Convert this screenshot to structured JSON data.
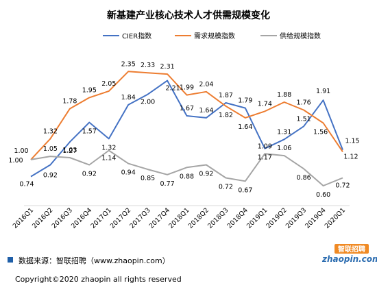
{
  "chart_data": {
    "type": "line",
    "title": "新基建产业核心技术人才供需规模变化",
    "categories": [
      "2016Q1",
      "2016Q2",
      "2016Q3",
      "2016Q4",
      "2017Q1",
      "2017Q2",
      "2017Q3",
      "2017Q4",
      "2018Q1",
      "2018Q2",
      "2018Q3",
      "2018Q4",
      "2019Q1",
      "2019Q2",
      "2019Q3",
      "2019Q4",
      "2020Q1"
    ],
    "series": [
      {
        "name": "CIER指数",
        "color": "#4472c4",
        "values": [
          0.74,
          0.92,
          1.27,
          1.57,
          1.32,
          1.84,
          2.0,
          2.21,
          1.67,
          1.64,
          1.87,
          1.79,
          1.17,
          1.31,
          1.51,
          1.91,
          1.15
        ]
      },
      {
        "name": "需求规模指数",
        "color": "#ed7d31",
        "values": [
          1.0,
          1.32,
          1.78,
          1.95,
          2.05,
          2.35,
          2.33,
          2.31,
          1.99,
          2.04,
          1.82,
          1.64,
          1.74,
          1.88,
          1.76,
          1.56,
          1.12
        ]
      },
      {
        "name": "供给规模指数",
        "color": "#a5a5a5",
        "values": [
          1.0,
          1.05,
          1.03,
          0.92,
          1.14,
          0.94,
          0.85,
          0.77,
          0.88,
          0.92,
          0.72,
          0.67,
          1.09,
          1.06,
          0.86,
          0.6,
          0.72
        ]
      }
    ],
    "ylim": [
      0.4,
      2.5
    ],
    "grid": false,
    "legend": "top"
  },
  "footer": {
    "source": "数据来源：智联招聘（www.zhaopin.com）",
    "copyright": "Copyright©2020 zhaopin all rights reserved"
  },
  "logo": {
    "text": "zhaopin.com",
    "cn": "智联招聘"
  },
  "colors": {
    "source_marker": "#1f5fa8"
  }
}
